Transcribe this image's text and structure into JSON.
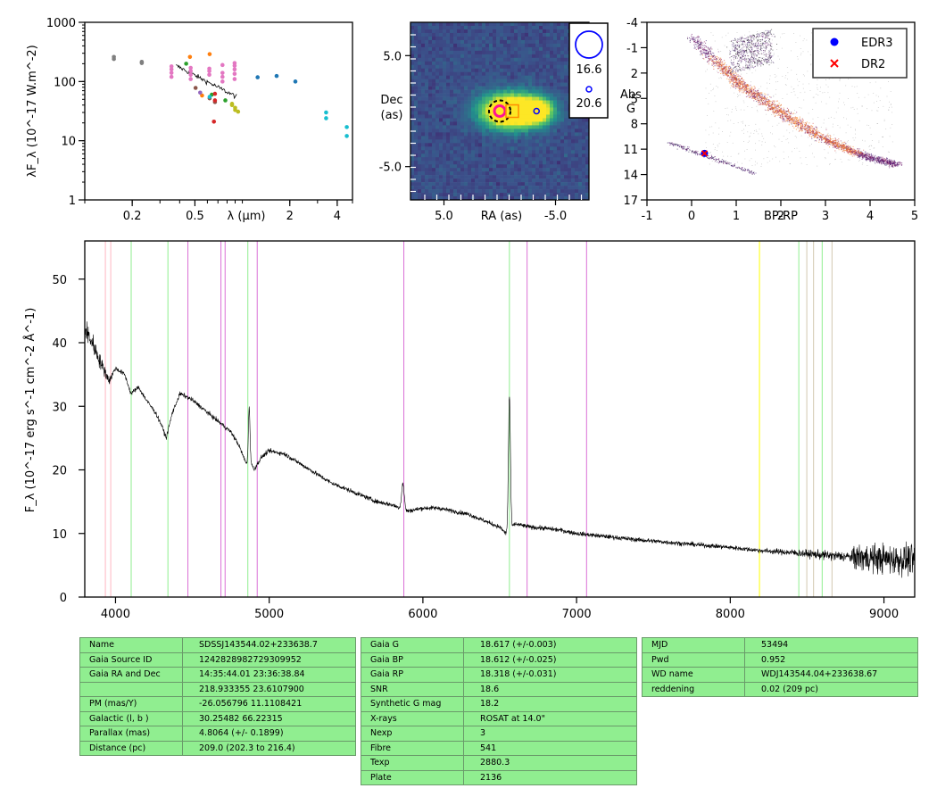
{
  "chart_data": [
    {
      "type": "scatter",
      "name": "sed",
      "xlabel": "λ (μm)",
      "ylabel": "λF_λ (10^-17 W.m^-2)",
      "xscale": "log",
      "yscale": "log",
      "xlim": [
        0.1,
        5
      ],
      "ylim": [
        1,
        1000
      ],
      "xticks": [
        {
          "v": 0.2,
          "t": "0.2"
        },
        {
          "v": 0.5,
          "t": "0.5"
        },
        {
          "v": 2,
          "t": "2"
        },
        {
          "v": 4,
          "t": "4"
        }
      ],
      "yticks": [
        {
          "v": 1,
          "t": "1"
        },
        {
          "v": 10,
          "t": "10"
        },
        {
          "v": 100,
          "t": "100"
        },
        {
          "v": 1000,
          "t": "1000"
        }
      ],
      "points": [
        {
          "x": 0.153,
          "y": 240,
          "c": "#7f7f7f"
        },
        {
          "x": 0.153,
          "y": 260,
          "c": "#7f7f7f"
        },
        {
          "x": 0.23,
          "y": 205,
          "c": "#7f7f7f"
        },
        {
          "x": 0.23,
          "y": 215,
          "c": "#7f7f7f"
        },
        {
          "x": 0.355,
          "y": 120,
          "c": "#e377c2"
        },
        {
          "x": 0.355,
          "y": 140,
          "c": "#e377c2"
        },
        {
          "x": 0.355,
          "y": 160,
          "c": "#e377c2"
        },
        {
          "x": 0.355,
          "y": 180,
          "c": "#e377c2"
        },
        {
          "x": 0.47,
          "y": 110,
          "c": "#e377c2"
        },
        {
          "x": 0.47,
          "y": 130,
          "c": "#e377c2"
        },
        {
          "x": 0.47,
          "y": 150,
          "c": "#e377c2"
        },
        {
          "x": 0.47,
          "y": 170,
          "c": "#e377c2"
        },
        {
          "x": 0.617,
          "y": 130,
          "c": "#e377c2"
        },
        {
          "x": 0.617,
          "y": 150,
          "c": "#e377c2"
        },
        {
          "x": 0.617,
          "y": 165,
          "c": "#e377c2"
        },
        {
          "x": 0.748,
          "y": 100,
          "c": "#e377c2"
        },
        {
          "x": 0.748,
          "y": 120,
          "c": "#e377c2"
        },
        {
          "x": 0.748,
          "y": 140,
          "c": "#e377c2"
        },
        {
          "x": 0.748,
          "y": 190,
          "c": "#e377c2"
        },
        {
          "x": 0.893,
          "y": 110,
          "c": "#e377c2"
        },
        {
          "x": 0.893,
          "y": 135,
          "c": "#e377c2"
        },
        {
          "x": 0.893,
          "y": 160,
          "c": "#e377c2"
        },
        {
          "x": 0.893,
          "y": 185,
          "c": "#e377c2"
        },
        {
          "x": 0.893,
          "y": 205,
          "c": "#e377c2"
        },
        {
          "x": 0.44,
          "y": 200,
          "c": "#2ca02c"
        },
        {
          "x": 0.64,
          "y": 60,
          "c": "#2ca02c"
        },
        {
          "x": 0.78,
          "y": 48,
          "c": "#2ca02c"
        },
        {
          "x": 0.465,
          "y": 260,
          "c": "#ff7f0e"
        },
        {
          "x": 0.62,
          "y": 290,
          "c": "#ff7f0e"
        },
        {
          "x": 0.555,
          "y": 58,
          "c": "#ff7f0e"
        },
        {
          "x": 0.505,
          "y": 78,
          "c": "#8c564b"
        },
        {
          "x": 0.62,
          "y": 52,
          "c": "#8c564b"
        },
        {
          "x": 0.67,
          "y": 45,
          "c": "#8c564b"
        },
        {
          "x": 0.67,
          "y": 62,
          "c": "#d62728"
        },
        {
          "x": 0.67,
          "y": 48,
          "c": "#d62728"
        },
        {
          "x": 0.66,
          "y": 21,
          "c": "#d62728"
        },
        {
          "x": 0.54,
          "y": 65,
          "c": "#9467bd"
        },
        {
          "x": 0.62,
          "y": 55,
          "c": "#17becf"
        },
        {
          "x": 0.86,
          "y": 42,
          "c": "#bcbd22"
        },
        {
          "x": 0.86,
          "y": 40,
          "c": "#bcbd22"
        },
        {
          "x": 0.9,
          "y": 36,
          "c": "#bcbd22"
        },
        {
          "x": 0.9,
          "y": 33,
          "c": "#bcbd22"
        },
        {
          "x": 0.94,
          "y": 31,
          "c": "#bcbd22"
        },
        {
          "x": 1.25,
          "y": 118,
          "c": "#1f77b4"
        },
        {
          "x": 1.65,
          "y": 124,
          "c": "#1f77b4"
        },
        {
          "x": 2.17,
          "y": 100,
          "c": "#1f77b4"
        },
        {
          "x": 3.4,
          "y": 30,
          "c": "#17becf"
        },
        {
          "x": 3.4,
          "y": 24,
          "c": "#17becf"
        },
        {
          "x": 4.6,
          "y": 17,
          "c": "#17becf"
        },
        {
          "x": 4.6,
          "y": 12,
          "c": "#17becf"
        }
      ],
      "spectrum_line": {
        "x_start": 0.38,
        "x_end": 0.92,
        "y_start": 185,
        "y_end": 55
      }
    },
    {
      "type": "heatmap",
      "name": "image",
      "xlabel": "RA (as)",
      "ylabel": "Dec\n(as)",
      "xlim": [
        8,
        -8
      ],
      "ylim": [
        -8,
        8
      ],
      "xticks": [
        {
          "v": 5,
          "t": "5.0"
        },
        {
          "v": -5,
          "t": "-5.0"
        }
      ],
      "yticks": [
        {
          "v": 5,
          "t": "5.0"
        },
        {
          "v": -5,
          "t": "-5.0"
        }
      ],
      "sources": [
        {
          "x": 0,
          "y": 0,
          "type": "target",
          "color": "#ff1493"
        },
        {
          "x": -3.3,
          "y": 0,
          "type": "neighbour",
          "color": "#0000ff"
        }
      ],
      "legend": [
        {
          "label": "16.6"
        },
        {
          "label": "20.6"
        }
      ]
    },
    {
      "type": "scatter",
      "name": "hr_diagram",
      "xlabel": "BP-RP",
      "ylabel": "Abs\nG",
      "xlim": [
        -1,
        5
      ],
      "ylim": [
        17,
        -4
      ],
      "xticks": [
        {
          "v": -1,
          "t": "-1"
        },
        {
          "v": 0,
          "t": "0"
        },
        {
          "v": 1,
          "t": "1"
        },
        {
          "v": 2,
          "t": "2"
        },
        {
          "v": 3,
          "t": "3"
        },
        {
          "v": 4,
          "t": "4"
        },
        {
          "v": 5,
          "t": "5"
        }
      ],
      "yticks": [
        {
          "v": -4,
          "t": "-4"
        },
        {
          "v": -1,
          "t": "-1"
        },
        {
          "v": 2,
          "t": "2"
        },
        {
          "v": 5,
          "t": "5"
        },
        {
          "v": 8,
          "t": "8"
        },
        {
          "v": 11,
          "t": "11"
        },
        {
          "v": 14,
          "t": "14"
        },
        {
          "v": 17,
          "t": "17"
        }
      ],
      "legend": [
        {
          "label": "EDR3",
          "marker": "circle",
          "color": "#0000ff"
        },
        {
          "label": "DR2",
          "marker": "x",
          "color": "#ff0000"
        }
      ],
      "target": {
        "x": 0.29,
        "y": 11.5
      }
    },
    {
      "type": "line",
      "name": "spectrum",
      "xlabel": "",
      "ylabel": "F_λ (10^-17 erg s^-1 cm^-2 Å^-1)",
      "xlim": [
        3800,
        9200
      ],
      "ylim": [
        0,
        56
      ],
      "xticks": [
        {
          "v": 4000,
          "t": "4000"
        },
        {
          "v": 5000,
          "t": "5000"
        },
        {
          "v": 6000,
          "t": "6000"
        },
        {
          "v": 7000,
          "t": "7000"
        },
        {
          "v": 8000,
          "t": "8000"
        },
        {
          "v": 9000,
          "t": "9000"
        }
      ],
      "yticks": [
        {
          "v": 0,
          "t": "0"
        },
        {
          "v": 10,
          "t": "10"
        },
        {
          "v": 20,
          "t": "20"
        },
        {
          "v": 30,
          "t": "30"
        },
        {
          "v": 40,
          "t": "40"
        },
        {
          "v": 50,
          "t": "50"
        }
      ],
      "lines": [
        {
          "x": 3934,
          "c": "#ffb6c1"
        },
        {
          "x": 3969,
          "c": "#ffb6c1"
        },
        {
          "x": 4102,
          "c": "#90ee90"
        },
        {
          "x": 4341,
          "c": "#90ee90"
        },
        {
          "x": 4861,
          "c": "#90ee90"
        },
        {
          "x": 6563,
          "c": "#90ee90"
        },
        {
          "x": 4471,
          "c": "#da70d6"
        },
        {
          "x": 4686,
          "c": "#da70d6"
        },
        {
          "x": 4713,
          "c": "#da70d6"
        },
        {
          "x": 4922,
          "c": "#da70d6"
        },
        {
          "x": 5876,
          "c": "#da70d6"
        },
        {
          "x": 6678,
          "c": "#da70d6"
        },
        {
          "x": 7065,
          "c": "#da70d6"
        },
        {
          "x": 8190,
          "c": "#ffff00"
        },
        {
          "x": 8446,
          "c": "#90ee90"
        },
        {
          "x": 8598,
          "c": "#90ee90"
        },
        {
          "x": 8498,
          "c": "#d2c8b0"
        },
        {
          "x": 8542,
          "c": "#d2c8b0"
        },
        {
          "x": 8662,
          "c": "#d2c8b0"
        }
      ],
      "anchors": [
        [
          3800,
          42
        ],
        [
          3850,
          40
        ],
        [
          3900,
          37
        ],
        [
          3960,
          34
        ],
        [
          4000,
          36
        ],
        [
          4060,
          35
        ],
        [
          4100,
          32
        ],
        [
          4150,
          33
        ],
        [
          4200,
          31
        ],
        [
          4260,
          29
        ],
        [
          4300,
          27
        ],
        [
          4330,
          25
        ],
        [
          4370,
          29
        ],
        [
          4420,
          32
        ],
        [
          4500,
          31
        ],
        [
          4550,
          30
        ],
        [
          4600,
          29
        ],
        [
          4650,
          28
        ],
        [
          4700,
          27
        ],
        [
          4750,
          26
        ],
        [
          4800,
          24
        ],
        [
          4850,
          21
        ],
        [
          4870,
          22
        ],
        [
          4900,
          20
        ],
        [
          4950,
          22
        ],
        [
          5000,
          23
        ],
        [
          5100,
          22.5
        ],
        [
          5200,
          21
        ],
        [
          5300,
          19.5
        ],
        [
          5400,
          18
        ],
        [
          5500,
          17
        ],
        [
          5600,
          16
        ],
        [
          5700,
          15
        ],
        [
          5800,
          14.5
        ],
        [
          5900,
          13.5
        ],
        [
          6000,
          14
        ],
        [
          6100,
          14
        ],
        [
          6200,
          13.5
        ],
        [
          6300,
          13
        ],
        [
          6400,
          12
        ],
        [
          6500,
          11
        ],
        [
          6540,
          10
        ],
        [
          6600,
          11.5
        ],
        [
          6700,
          11
        ],
        [
          6800,
          10.8
        ],
        [
          6900,
          10.5
        ],
        [
          7000,
          10
        ],
        [
          7200,
          9.5
        ],
        [
          7400,
          9
        ],
        [
          7600,
          8.6
        ],
        [
          7800,
          8.2
        ],
        [
          8000,
          7.8
        ],
        [
          8200,
          7.3
        ],
        [
          8400,
          7
        ],
        [
          8600,
          6.6
        ],
        [
          8800,
          6.3
        ],
        [
          9000,
          6
        ],
        [
          9200,
          5.8
        ]
      ],
      "features": [
        {
          "center": 4870,
          "width": 7,
          "height": 8
        },
        {
          "center": 5870,
          "width": 12,
          "height": 4
        },
        {
          "center": 6563,
          "width": 9,
          "height": 21
        }
      ]
    }
  ],
  "tables": {
    "left": [
      [
        "Name",
        "SDSSJ143544.02+233638.7"
      ],
      [
        "Gaia Source ID",
        "1242828982729309952"
      ],
      [
        "Gaia RA and Dec",
        "14:35:44.01    23:36:38.84"
      ],
      [
        "",
        "218.933355    23.6107900"
      ],
      [
        "PM (mas/Y)",
        "-26.056796    11.1108421"
      ],
      [
        "Galactic (l, b )",
        "30.25482    66.22315"
      ],
      [
        "Parallax (mas)",
        "4.8064 (+/- 0.1899)"
      ],
      [
        "Distance (pc)",
        "209.0 (202.3 to 216.4)"
      ]
    ],
    "mid": [
      [
        "Gaia G",
        "18.617 (+/-0.003)"
      ],
      [
        "Gaia BP",
        "18.612 (+/-0.025)"
      ],
      [
        "Gaia RP",
        "18.318 (+/-0.031)"
      ],
      [
        "SNR",
        "18.6"
      ],
      [
        "Synthetic G mag",
        "18.2"
      ],
      [
        "X-rays",
        "ROSAT at 14.0\""
      ],
      [
        "Nexp",
        "3"
      ],
      [
        "Fibre",
        "541"
      ],
      [
        "Texp",
        "2880.3"
      ],
      [
        "Plate",
        "2136"
      ]
    ],
    "right": [
      [
        "MJD",
        "53494"
      ],
      [
        "Pwd",
        "0.952"
      ],
      [
        "WD name",
        "WDJ143544.04+233638.67"
      ],
      [
        "reddening",
        "0.02 (209 pc)"
      ]
    ]
  }
}
